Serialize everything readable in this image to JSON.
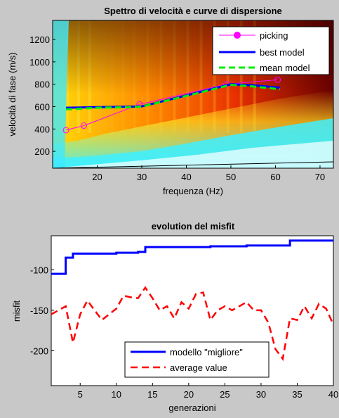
{
  "chart_data": [
    {
      "type": "heatmap",
      "title": "Spettro di velocità e curve di dispersione",
      "xlabel": "frequenza (Hz)",
      "ylabel": "velocità di fase (m/s)",
      "xlim": [
        10,
        73
      ],
      "ylim": [
        50,
        1370
      ],
      "xticks": [
        20,
        30,
        40,
        50,
        60,
        70
      ],
      "yticks": [
        200,
        400,
        600,
        800,
        1000,
        1200
      ],
      "grid": false,
      "legend_position": "top-right",
      "colors": {
        "picking": "#ff00ff",
        "best_model": "#0000ff",
        "mean_model": "#00ee00"
      },
      "series": [
        {
          "name": "picking",
          "style": "line-circle-markers",
          "x": [
            13.0,
            17.0,
            29.5,
            49.0,
            60.5
          ],
          "y": [
            390,
            430,
            620,
            800,
            840
          ]
        },
        {
          "name": "best model",
          "style": "solid",
          "x": [
            13,
            20,
            28,
            30,
            40,
            50,
            55,
            61
          ],
          "y": [
            590,
            595,
            600,
            602,
            700,
            800,
            790,
            770
          ]
        },
        {
          "name": "mean model",
          "style": "dashed",
          "x": [
            13,
            20,
            28,
            30,
            40,
            50,
            55,
            61
          ],
          "y": [
            575,
            590,
            595,
            600,
            695,
            795,
            780,
            755
          ]
        }
      ]
    },
    {
      "type": "line",
      "title": "evolution del misfit",
      "xlabel": "generazioni",
      "ylabel": "misfit",
      "xlim": [
        1,
        40
      ],
      "ylim": [
        -243,
        -58
      ],
      "xticks": [
        5,
        10,
        15,
        20,
        25,
        30,
        35,
        40
      ],
      "yticks": [
        -100,
        -150,
        -200
      ],
      "grid": false,
      "legend_position": "bottom-right",
      "colors": {
        "best": "#0000ff",
        "average": "#ff0000"
      },
      "x": [
        1,
        2,
        3,
        4,
        5,
        6,
        7,
        8,
        9,
        10,
        11,
        12,
        13,
        14,
        15,
        16,
        17,
        18,
        19,
        20,
        21,
        22,
        23,
        24,
        25,
        26,
        27,
        28,
        29,
        30,
        31,
        32,
        33,
        34,
        35,
        36,
        37,
        38,
        39,
        40
      ],
      "series": [
        {
          "name": "modello \"migliore\"",
          "style": "solid",
          "values": [
            -105,
            -105,
            -85,
            -80,
            -80,
            -80,
            -80,
            -80,
            -80,
            -79,
            -79,
            -79,
            -78,
            -72,
            -72,
            -72,
            -72,
            -72,
            -72,
            -72,
            -72,
            -72,
            -71,
            -71,
            -71,
            -71,
            -71,
            -70,
            -70,
            -70,
            -70,
            -70,
            -70,
            -64,
            -64,
            -64,
            -64,
            -64,
            -64,
            -64
          ]
        },
        {
          "name": "average value",
          "style": "dashed",
          "values": [
            -155,
            -150,
            -145,
            -190,
            -155,
            -138,
            -150,
            -162,
            -155,
            -148,
            -132,
            -134,
            -135,
            -122,
            -135,
            -150,
            -145,
            -160,
            -140,
            -148,
            -130,
            -128,
            -162,
            -150,
            -145,
            -150,
            -145,
            -140,
            -150,
            -150,
            -165,
            -198,
            -210,
            -160,
            -162,
            -145,
            -160,
            -142,
            -148,
            -168
          ]
        }
      ]
    }
  ]
}
